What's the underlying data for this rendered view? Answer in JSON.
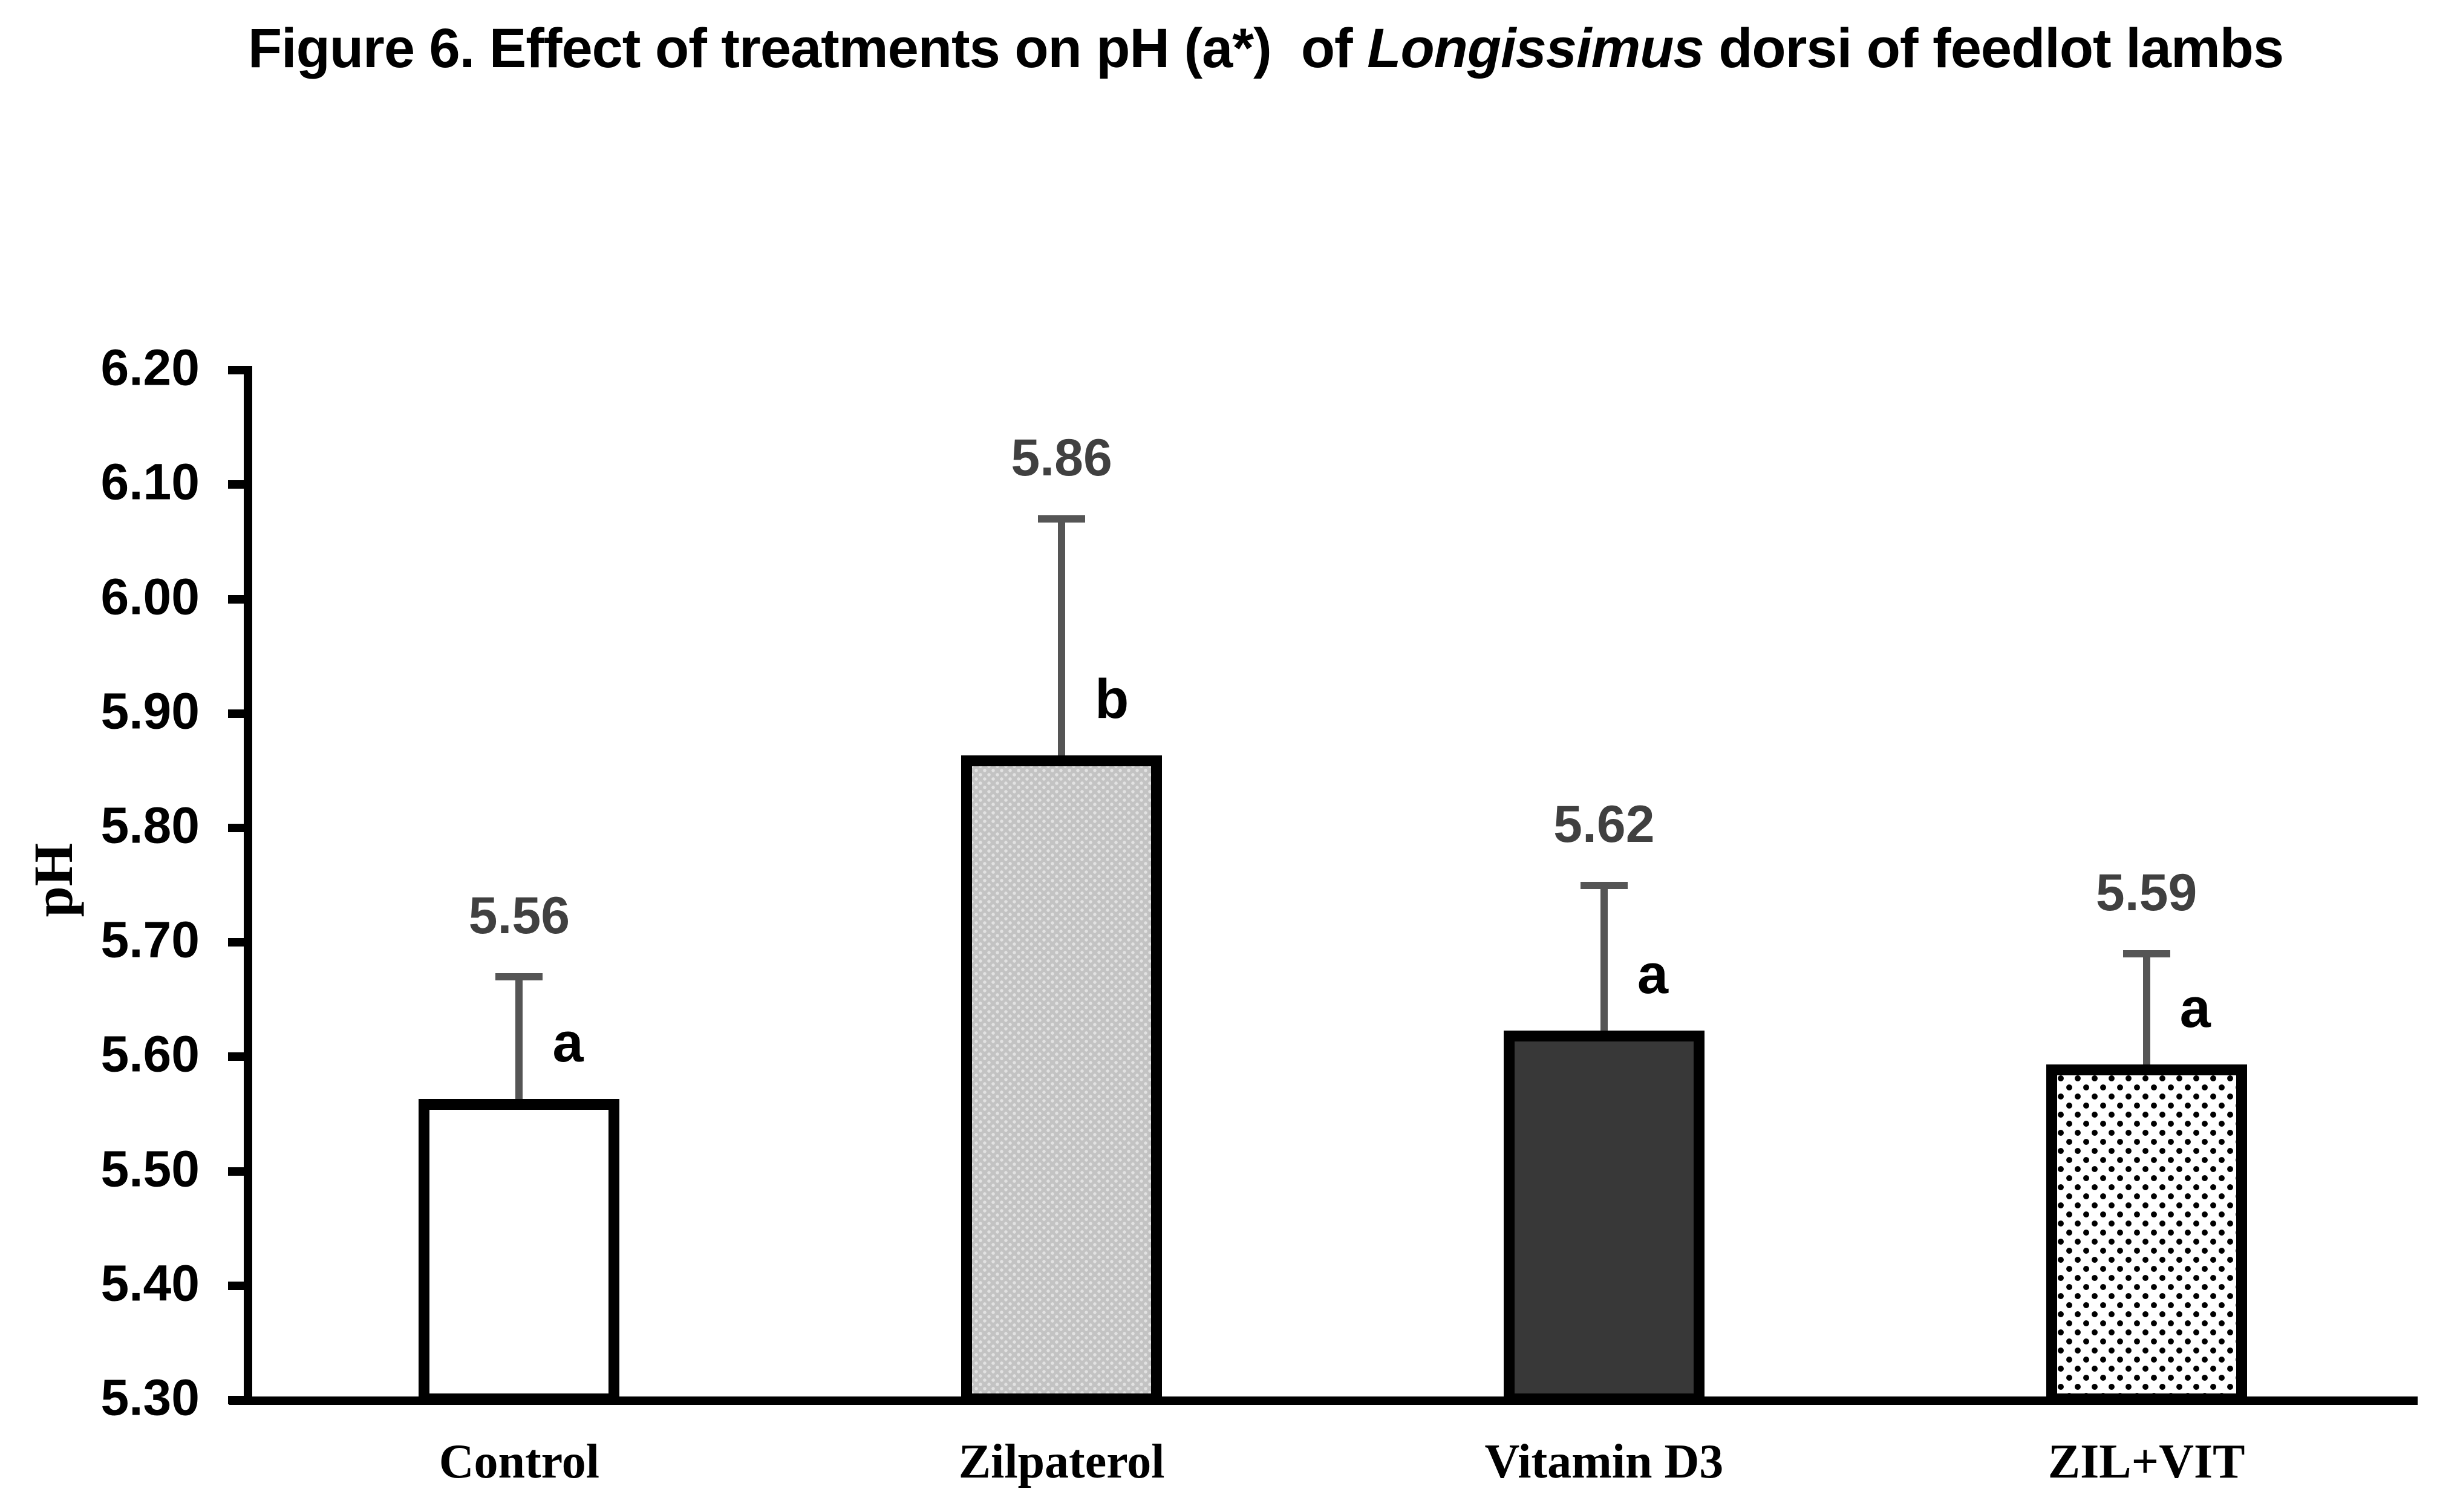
{
  "page": {
    "background": "#ffffff"
  },
  "title": {
    "prefix": "Figure 6. Effect of treatments on pH (a*)  of ",
    "italic_word": "Longissimus",
    "suffix": " dorsi of feedlot lambs"
  },
  "chart_data": {
    "type": "bar",
    "title": "Figure 6. Effect of treatments on pH (a*) of Longissimus dorsi of feedlot lambs",
    "categories": [
      "Control",
      "Zilpaterol",
      "Vitamin D3",
      "ZIL+VIT"
    ],
    "values": [
      5.56,
      5.86,
      5.62,
      5.59
    ],
    "value_labels": [
      "5.56",
      "5.86",
      "5.62",
      "5.59"
    ],
    "error_bar_tops": [
      5.67,
      6.07,
      5.75,
      5.69
    ],
    "significance_letters": [
      "a",
      "b",
      "a",
      "a"
    ],
    "bar_fills": [
      "white",
      "light-gray-dots",
      "dark-gray",
      "black-dots"
    ],
    "ylabel": "pH",
    "xlabel": "",
    "ylim": [
      5.3,
      6.2
    ],
    "ytick_labels": [
      "6.20",
      "6.10",
      "6.00",
      "5.90",
      "5.80",
      "5.70",
      "5.60",
      "5.50",
      "5.40",
      "5.30"
    ],
    "grid": false,
    "legend": false
  },
  "colors": {
    "axis": "#000000",
    "bar_border": "#000000",
    "value_label": "#404040",
    "error_bar": "#555555",
    "significance_letter": "#000000",
    "light_gray_fill": "#c3c3c3",
    "dark_gray_fill": "#383838"
  }
}
